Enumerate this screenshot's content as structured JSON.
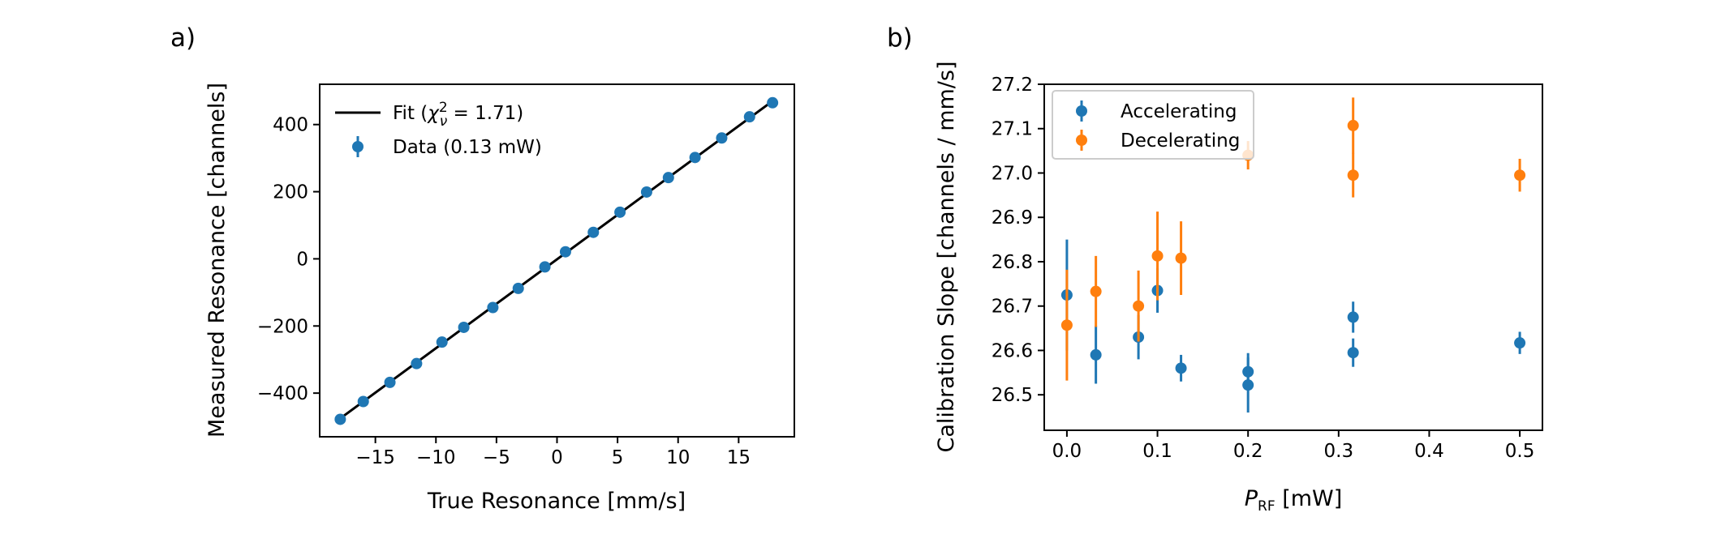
{
  "figure": {
    "panel_labels": [
      "a)",
      "b)"
    ]
  },
  "chart_data": [
    {
      "panel": "a)",
      "type": "scatter",
      "xlabel": "True Resonance [mm/s]",
      "ylabel": "Measured Resonance [channels]",
      "xlim": [
        -19.6,
        19.6
      ],
      "ylim": [
        -530,
        520
      ],
      "xticks": [
        -15,
        -10,
        -5,
        0,
        5,
        10,
        15
      ],
      "xtick_labels": [
        "−15",
        "−10",
        "−5",
        "0",
        "5",
        "10",
        "15"
      ],
      "yticks": [
        -400,
        -200,
        0,
        200,
        400
      ],
      "ytick_labels": [
        "−400",
        "−200",
        "0",
        "200",
        "400"
      ],
      "legend_position": "upper-left",
      "fit": {
        "name": "Fit",
        "chi2_label": "Fit (χ²ᵥ = 1.71)",
        "color": "#000000",
        "x": [
          -18.0,
          17.8
        ],
        "y": [
          -478,
          470
        ]
      },
      "series": [
        {
          "name": "Data (0.13 mW)",
          "color": "#1f77b4",
          "x": [
            -17.9,
            -16.0,
            -13.8,
            -11.6,
            -9.5,
            -7.7,
            -5.3,
            -3.2,
            -1.0,
            0.7,
            3.0,
            5.2,
            7.4,
            9.2,
            11.4,
            13.6,
            15.9,
            17.8
          ],
          "y": [
            -478,
            -425,
            -368,
            -312,
            -248,
            -204,
            -145,
            -88,
            -24,
            21,
            79,
            139,
            199,
            242,
            302,
            360,
            423,
            465
          ]
        }
      ]
    },
    {
      "panel": "b)",
      "type": "scatter",
      "xlabel_prefix": "P",
      "xlabel_sub": "RF",
      "xlabel_suffix": " [mW]",
      "ylabel": "Calibration Slope [channels / mm/s]",
      "xlim": [
        -0.025,
        0.525
      ],
      "ylim": [
        26.42,
        27.2
      ],
      "xticks": [
        0.0,
        0.1,
        0.2,
        0.3,
        0.4,
        0.5
      ],
      "xtick_labels": [
        "0.0",
        "0.1",
        "0.2",
        "0.3",
        "0.4",
        "0.5"
      ],
      "yticks": [
        26.5,
        26.6,
        26.7,
        26.8,
        26.9,
        27.0,
        27.1,
        27.2
      ],
      "ytick_labels": [
        "26.5",
        "26.6",
        "26.7",
        "26.8",
        "26.9",
        "27.0",
        "27.1",
        "27.2"
      ],
      "legend_position": "upper-left",
      "series": [
        {
          "name": "Accelerating",
          "color": "#1f77b4",
          "x": [
            0.0,
            0.032,
            0.079,
            0.1,
            0.126,
            0.2,
            0.2,
            0.316,
            0.316,
            0.5
          ],
          "y": [
            26.725,
            26.59,
            26.63,
            26.735,
            26.56,
            26.552,
            26.522,
            26.675,
            26.595,
            26.617
          ],
          "err": [
            0.125,
            0.065,
            0.05,
            0.05,
            0.03,
            0.042,
            0.062,
            0.035,
            0.032,
            0.025
          ]
        },
        {
          "name": "Decelerating",
          "color": "#ff7f0e",
          "x": [
            0.0,
            0.032,
            0.079,
            0.1,
            0.126,
            0.2,
            0.316,
            0.316,
            0.5
          ],
          "y": [
            26.657,
            26.733,
            26.7,
            26.813,
            26.808,
            27.04,
            27.107,
            26.995,
            26.995
          ],
          "err": [
            0.125,
            0.08,
            0.08,
            0.1,
            0.083,
            0.032,
            0.063,
            0.05,
            0.037
          ]
        }
      ]
    }
  ]
}
